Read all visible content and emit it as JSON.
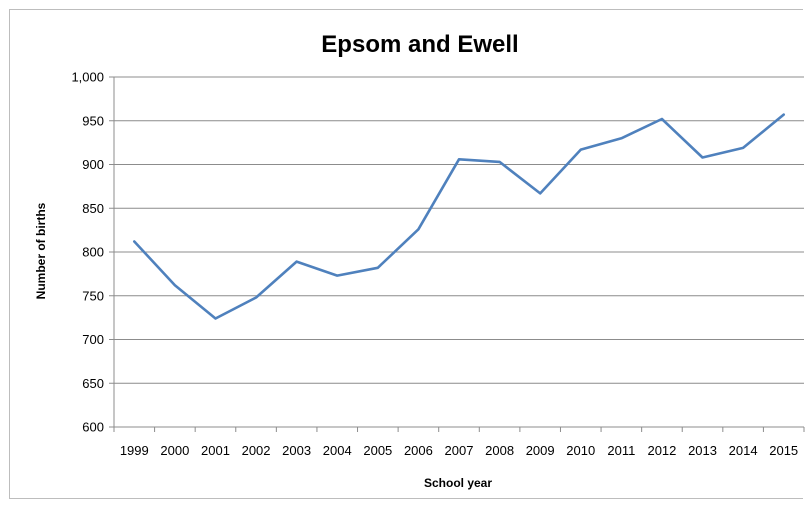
{
  "chart_data": {
    "type": "line",
    "title": "Epsom and Ewell",
    "xlabel": "School year",
    "ylabel": "Number of births",
    "categories": [
      "1999",
      "2000",
      "2001",
      "2002",
      "2003",
      "2004",
      "2005",
      "2006",
      "2007",
      "2008",
      "2009",
      "2010",
      "2011",
      "2012",
      "2013",
      "2014",
      "2015"
    ],
    "series": [
      {
        "values": [
          812,
          762,
          724,
          748,
          789,
          773,
          782,
          826,
          906,
          903,
          867,
          917,
          930,
          952,
          908,
          919,
          957
        ]
      }
    ],
    "yticks": [
      "600",
      "650",
      "700",
      "750",
      "800",
      "850",
      "900",
      "950",
      "1,000"
    ],
    "ylim": [
      600,
      1000
    ],
    "grid": true,
    "legend": "none",
    "line_color": "#4f81bd"
  }
}
